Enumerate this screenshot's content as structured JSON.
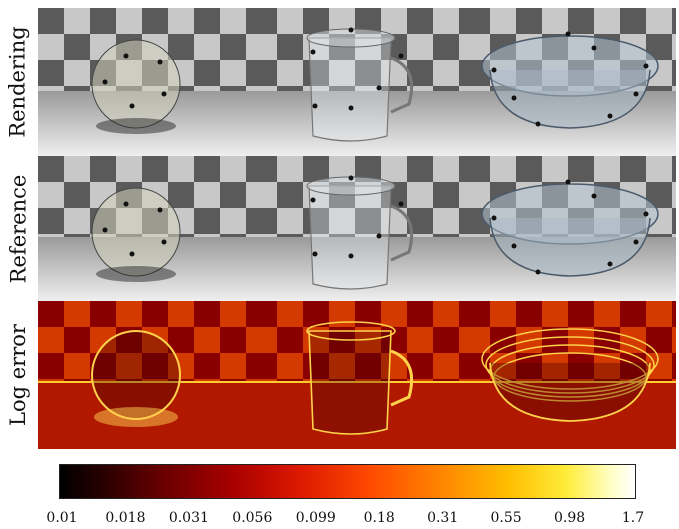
{
  "rows": [
    {
      "label": "Rendering"
    },
    {
      "label": "Reference"
    },
    {
      "label": "Log error"
    }
  ],
  "columns": [
    {
      "object": "sphere"
    },
    {
      "object": "pitcher"
    },
    {
      "object": "casserole"
    }
  ],
  "colorbar": {
    "colormap": "hot",
    "ticks": [
      "0.01",
      "0.018",
      "0.031",
      "0.056",
      "0.099",
      "0.18",
      "0.31",
      "0.55",
      "0.98",
      "1.7"
    ]
  }
}
